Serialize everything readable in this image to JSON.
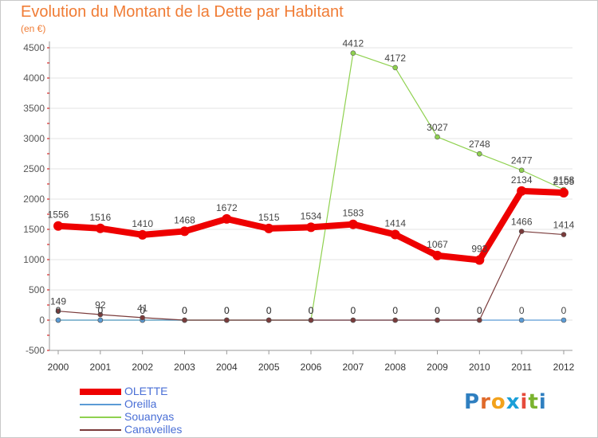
{
  "header": {
    "title": "Evolution du Montant de la Dette par Habitant",
    "subtitle": "(en €)"
  },
  "logo": {
    "text": "Proxiti",
    "colors": [
      "#2f7fc0",
      "#e06a2a",
      "#f2a21c",
      "#1a9fd8",
      "#e64b3c",
      "#7ab32e",
      "#2f7fc0"
    ]
  },
  "chart_data": {
    "type": "line",
    "x": [
      "2000",
      "2001",
      "2002",
      "2003",
      "2004",
      "2005",
      "2006",
      "2007",
      "2008",
      "2009",
      "2010",
      "2011",
      "2012"
    ],
    "ylim": [
      -500,
      4500
    ],
    "yticks": [
      -500,
      0,
      500,
      1000,
      1500,
      2000,
      2500,
      3000,
      3500,
      4000,
      4500
    ],
    "series": [
      {
        "name": "OLETTE",
        "color": "#ee0000",
        "values": [
          1556,
          1516,
          1410,
          1468,
          1672,
          1515,
          1534,
          1583,
          1414,
          1067,
          993,
          2134,
          2105
        ],
        "labels": [
          "1556",
          "1516",
          "1410",
          "1468",
          "1672",
          "1515",
          "1534",
          "1583",
          "1414",
          "1067",
          "993",
          "2134",
          "2105"
        ]
      },
      {
        "name": "Oreilla",
        "color": "#5b9bd5",
        "values": [
          0,
          0,
          0,
          0,
          0,
          0,
          0,
          0,
          0,
          0,
          0,
          0,
          0
        ],
        "labels": [
          "0",
          "0",
          "0",
          "0",
          "0",
          "0",
          "0",
          "0",
          "0",
          "0",
          "0",
          "0",
          "0"
        ]
      },
      {
        "name": "Souanyas",
        "color": "#8fd14f",
        "values": [
          0,
          0,
          0,
          0,
          0,
          0,
          0,
          4412,
          4172,
          3027,
          2748,
          2477,
          2158
        ],
        "labels": [
          "0",
          "0",
          "0",
          "0",
          "0",
          "0",
          "0",
          "4412",
          "4172",
          "3027",
          "2748",
          "2477",
          "2158"
        ]
      },
      {
        "name": "Canaveilles",
        "color": "#7a3b3b",
        "values": [
          149,
          92,
          41,
          0,
          0,
          0,
          0,
          0,
          0,
          0,
          0,
          1466,
          1414
        ],
        "labels": [
          "149",
          "92",
          "41",
          "0",
          "0",
          "0",
          "0",
          "0",
          "0",
          "0",
          "0",
          "1466",
          "1414"
        ]
      }
    ]
  }
}
